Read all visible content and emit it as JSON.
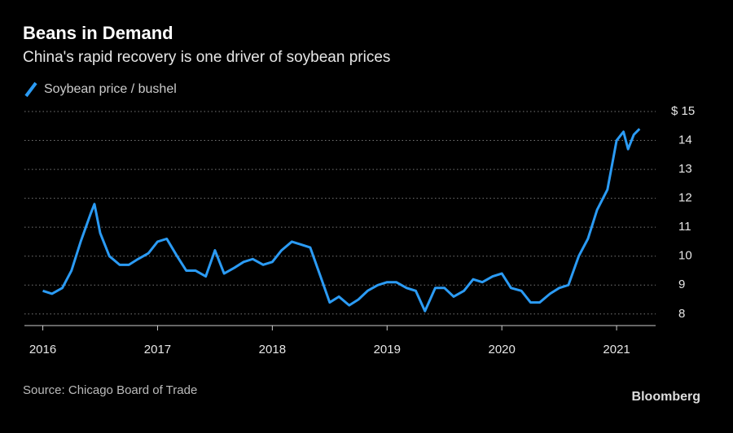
{
  "chart_data": {
    "type": "line",
    "title": "Beans in Demand",
    "subtitle": "China's rapid recovery is one driver of soybean prices",
    "source": "Source: Chicago Board of Trade",
    "brand": "Bloomberg",
    "x": [
      2016.0,
      2016.08,
      2016.17,
      2016.25,
      2016.33,
      2016.42,
      2016.45,
      2016.5,
      2016.58,
      2016.67,
      2016.75,
      2016.83,
      2016.92,
      2017.0,
      2017.08,
      2017.17,
      2017.25,
      2017.33,
      2017.42,
      2017.5,
      2017.58,
      2017.67,
      2017.75,
      2017.83,
      2017.92,
      2018.0,
      2018.08,
      2018.17,
      2018.25,
      2018.33,
      2018.42,
      2018.5,
      2018.58,
      2018.67,
      2018.75,
      2018.83,
      2018.92,
      2019.0,
      2019.08,
      2019.17,
      2019.25,
      2019.33,
      2019.42,
      2019.5,
      2019.58,
      2019.67,
      2019.75,
      2019.83,
      2019.92,
      2020.0,
      2020.08,
      2020.17,
      2020.25,
      2020.33,
      2020.42,
      2020.5,
      2020.58,
      2020.67,
      2020.75,
      2020.83,
      2020.92,
      2021.0,
      2021.06,
      2021.1,
      2021.15,
      2021.2
    ],
    "series": [
      {
        "name": "Soybean price / bushel",
        "color": "#2b9bf4",
        "values": [
          8.8,
          8.7,
          8.9,
          9.5,
          10.5,
          11.5,
          11.8,
          10.8,
          10.0,
          9.7,
          9.7,
          9.9,
          10.1,
          10.5,
          10.6,
          10.0,
          9.5,
          9.5,
          9.3,
          10.2,
          9.4,
          9.6,
          9.8,
          9.9,
          9.7,
          9.8,
          10.2,
          10.5,
          10.4,
          10.3,
          9.3,
          8.4,
          8.6,
          8.3,
          8.5,
          8.8,
          9.0,
          9.1,
          9.1,
          8.9,
          8.8,
          8.1,
          8.9,
          8.9,
          8.6,
          8.8,
          9.2,
          9.1,
          9.3,
          9.4,
          8.9,
          8.8,
          8.4,
          8.4,
          8.7,
          8.9,
          9.0,
          10.0,
          10.6,
          11.6,
          12.3,
          14.0,
          14.3,
          13.7,
          14.2,
          14.4
        ]
      }
    ],
    "xlim": [
      2015.84,
      2021.34
    ],
    "xticks": [
      2016,
      2017,
      2018,
      2019,
      2020,
      2021
    ],
    "ylim": [
      7.6,
      15
    ],
    "yticks": [
      8,
      9,
      10,
      11,
      12,
      13,
      14,
      {
        "value": 15,
        "label": "$ 15"
      }
    ],
    "grid": true
  }
}
